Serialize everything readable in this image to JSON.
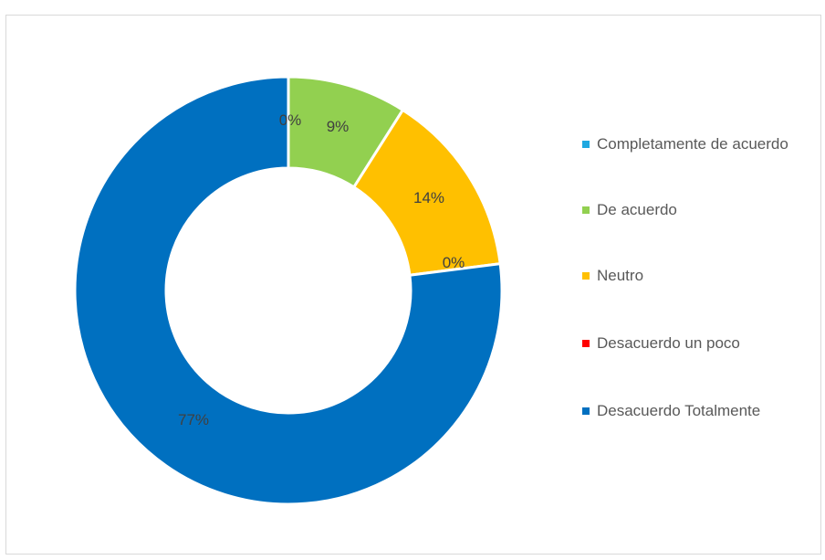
{
  "chart_data": {
    "type": "pie",
    "variant": "doughnut",
    "title": "",
    "categories": [
      "Completamente de acuerdo",
      "De acuerdo",
      "Neutro",
      "Desacuerdo un poco",
      "Desacuerdo Totalmente"
    ],
    "values": [
      0,
      9,
      14,
      0,
      77
    ],
    "data_labels": [
      "0%",
      "9%",
      "14%",
      "0%",
      "77%"
    ],
    "colors": [
      "#1fa8e0",
      "#92d050",
      "#ffc000",
      "#ff0000",
      "#0070c0"
    ],
    "legend_position": "right"
  }
}
